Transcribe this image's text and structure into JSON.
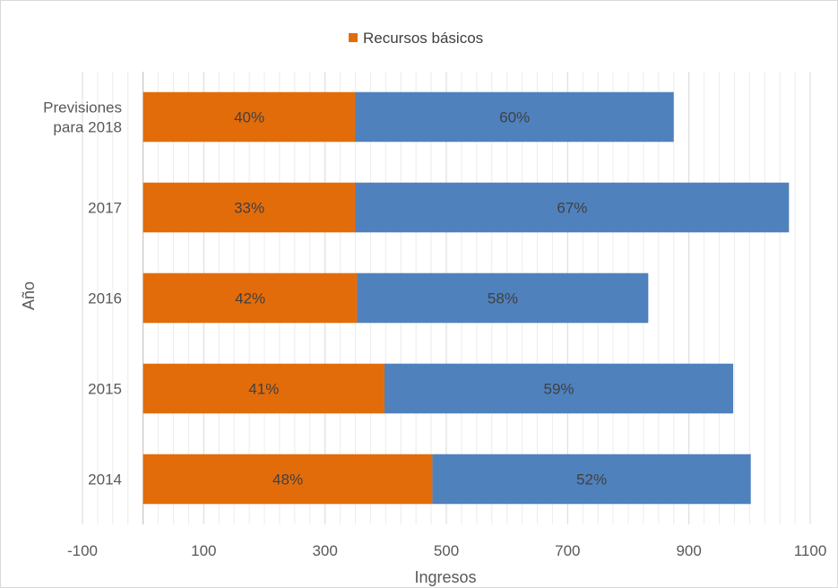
{
  "chart_data": {
    "type": "bar",
    "orientation": "horizontal",
    "stacked": true,
    "title": "",
    "xlabel": "Ingresos",
    "ylabel": "Año",
    "categories": [
      "Previsiones para 2018",
      "2017",
      "2016",
      "2015",
      "2014"
    ],
    "category_lines": [
      [
        "Previsiones",
        "para 2018"
      ],
      [
        "2017"
      ],
      [
        "2016"
      ],
      [
        "2015"
      ],
      [
        "2014"
      ]
    ],
    "xlim": [
      -100,
      1100
    ],
    "xticks": [
      -100,
      100,
      300,
      500,
      700,
      900,
      1100
    ],
    "grid": true,
    "legend": {
      "position": "top",
      "entries": [
        "Recursos básicos"
      ]
    },
    "series": [
      {
        "name": "Recursos básicos",
        "color": "#E36C0A",
        "values": [
          350,
          350,
          353,
          398,
          477
        ],
        "labels": [
          "40%",
          "33%",
          "42%",
          "41%",
          "48%"
        ]
      },
      {
        "color": "#4F81BD",
        "values": [
          525,
          715,
          480,
          575,
          525
        ],
        "labels": [
          "60%",
          "67%",
          "58%",
          "59%",
          "52%"
        ]
      }
    ]
  }
}
